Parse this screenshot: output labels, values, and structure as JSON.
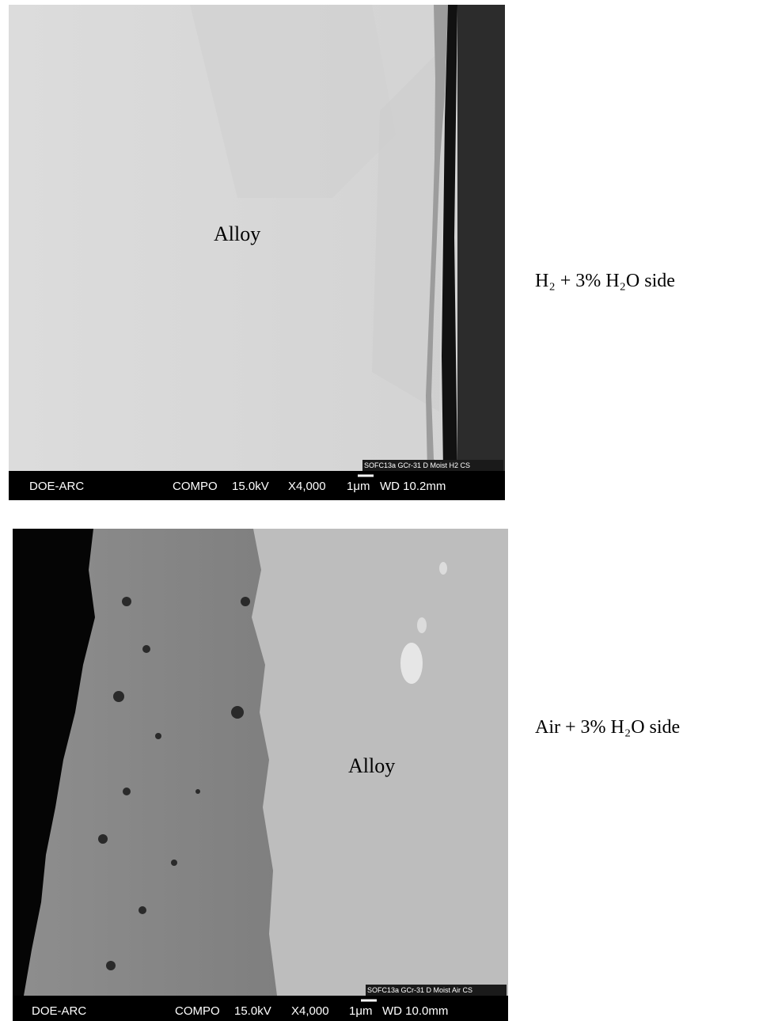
{
  "images": [
    {
      "label": "Alloy",
      "caption": "H₂ + 3% H₂O side",
      "sample": "SOFC13a GCr-31 D Moist H2 CS",
      "bar": [
        "DOE-ARC",
        "COMPO",
        "15.0kV",
        "X4,000",
        "1μm",
        "WD 10.2mm"
      ]
    },
    {
      "label": "Alloy",
      "caption": "Air + 3% H₂O side",
      "sample": "SOFC13a GCr-31 D Moist Air CS",
      "bar": [
        "DOE-ARC",
        "COMPO",
        "15.0kV",
        "X4,000",
        "1μm",
        "WD 10.0mm"
      ]
    }
  ]
}
